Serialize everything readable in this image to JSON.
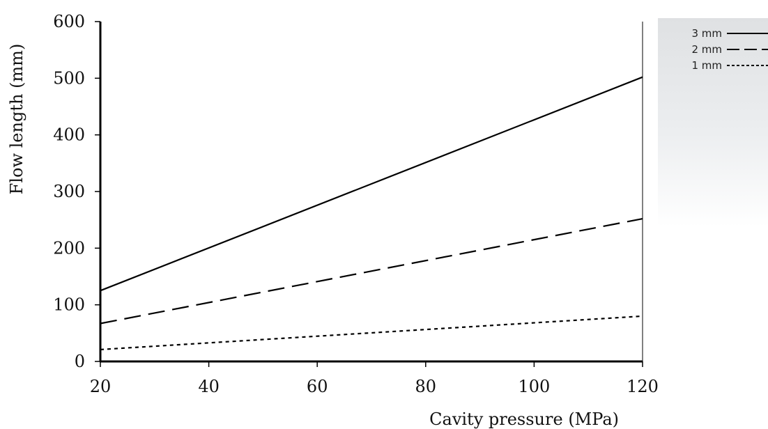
{
  "chart_data": {
    "type": "line",
    "xlabel": "Cavity pressure (MPa)",
    "ylabel": "Flow length (mm)",
    "xlim": [
      20,
      120
    ],
    "ylim": [
      0,
      600
    ],
    "xticks": [
      20,
      40,
      60,
      80,
      100,
      120
    ],
    "yticks": [
      0,
      100,
      200,
      300,
      400,
      500,
      600
    ],
    "grid": false,
    "legend_placement": "top-right",
    "series": [
      {
        "name": "3 mm",
        "style": "solid",
        "x": [
          20,
          120
        ],
        "values": [
          125,
          502
        ]
      },
      {
        "name": "2 mm",
        "style": "dashed",
        "x": [
          20,
          120
        ],
        "values": [
          67,
          252
        ]
      },
      {
        "name": "1 mm",
        "style": "dotted",
        "x": [
          20,
          120
        ],
        "values": [
          21,
          80
        ]
      }
    ]
  }
}
